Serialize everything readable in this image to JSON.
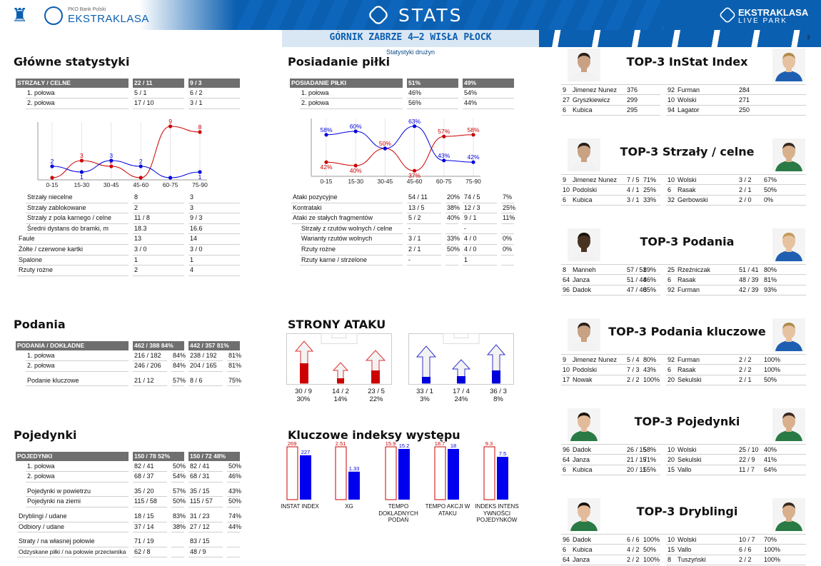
{
  "header": {
    "bank": "PKO Bank Polski",
    "league": "EKSTRAKLASA",
    "stats": "STATS",
    "livepark_top": "EKSTRAKLASA",
    "livepark_bottom": "LIVE PARK",
    "match": "GÓRNIK ZABRZE 4–2 WISŁA PŁOCK",
    "page": "3",
    "subtitle": "Statystyki drużyn",
    "colors": {
      "home": "#cc0000",
      "away": "#0000dd",
      "brand": "#0b5fb0"
    }
  },
  "main_stats": {
    "title": "Główne statystyki",
    "header": [
      "STRZAŁY / CELNE",
      "22 / 11",
      "9 / 3"
    ],
    "halves": [
      {
        "label": "1. połowa",
        "home": "5 / 1",
        "away": "6 / 2"
      },
      {
        "label": "2. połowa",
        "home": "17 / 10",
        "away": "3 / 1"
      }
    ],
    "rows": [
      {
        "label": "Strzały niecelne",
        "home": "8",
        "away": "3",
        "indent": 1
      },
      {
        "label": "Strzały zablokowane",
        "home": "2",
        "away": "3",
        "indent": 1
      },
      {
        "label": "Strzały z pola karnego / celne",
        "home": "11 / 8",
        "away": "9 / 3",
        "indent": 1
      },
      {
        "label": "Średni dystans do bramki, m",
        "home": "18.3",
        "away": "16.6",
        "indent": 1
      },
      {
        "label": "Faule",
        "home": "13",
        "away": "14",
        "indent": 0
      },
      {
        "label": "Żółte / czerwone kartki",
        "home": "3 / 0",
        "away": "3 / 0",
        "indent": 0
      },
      {
        "label": "Spalone",
        "home": "1",
        "away": "1",
        "indent": 0
      },
      {
        "label": "Rzuty rożne",
        "home": "2",
        "away": "4",
        "indent": 0
      }
    ]
  },
  "possession": {
    "title": "Posiadanie piłki",
    "header": [
      "POSIADANIE PIŁKI",
      "51%",
      "49%"
    ],
    "halves": [
      {
        "label": "1. połowa",
        "home": "46%",
        "away": "54%"
      },
      {
        "label": "2. połowa",
        "home": "56%",
        "away": "44%"
      }
    ],
    "rows": [
      {
        "label": "Ataki pozycyjne",
        "home": "54 / 11",
        "hp": "20%",
        "away": "74 / 5",
        "ap": "7%",
        "indent": 0
      },
      {
        "label": "Kontrataki",
        "home": "13 / 5",
        "hp": "38%",
        "away": "12 / 3",
        "ap": "25%",
        "indent": 0
      },
      {
        "label": "Ataki ze stałych fragmentów",
        "home": "5 / 2",
        "hp": "40%",
        "away": "9 / 1",
        "ap": "11%",
        "indent": 0
      },
      {
        "label": "Strzały z rzutów wolnych / celne",
        "home": "-",
        "hp": "",
        "away": "-",
        "ap": "",
        "indent": 1
      },
      {
        "label": "Warianty rzutów wolnych",
        "home": "3 / 1",
        "hp": "33%",
        "away": "4 / 0",
        "ap": "0%",
        "indent": 1
      },
      {
        "label": "Rzuty rożne",
        "home": "2 / 1",
        "hp": "50%",
        "away": "4 / 0",
        "ap": "0%",
        "indent": 1
      },
      {
        "label": "Rzuty karne / strzelone",
        "home": "-",
        "hp": "",
        "away": "1",
        "ap": "",
        "indent": 1
      }
    ]
  },
  "passes": {
    "title": "Podania",
    "header": [
      "PODANIA / DOKŁADNE",
      "462 / 388 84%",
      "442 / 357 81%"
    ],
    "rows": [
      {
        "label": "1. połowa",
        "home": "216 / 182",
        "hp": "84%",
        "away": "238 / 192",
        "ap": "81%"
      },
      {
        "label": "2. połowa",
        "home": "246 / 206",
        "hp": "84%",
        "away": "204 / 165",
        "ap": "81%"
      },
      {
        "label": "Podanie kluczowe",
        "home": "21 / 12",
        "hp": "57%",
        "away": "8 / 6",
        "ap": "75%"
      }
    ]
  },
  "duels": {
    "title": "Pojedynki",
    "header": [
      "POJEDYNKI",
      "150 / 78 52%",
      "150 / 72 48%"
    ],
    "rows": [
      {
        "label": "1. połowa",
        "home": "82 / 41",
        "hp": "50%",
        "away": "82 / 41",
        "ap": "50%",
        "gap": false
      },
      {
        "label": "2. połowa",
        "home": "68 / 37",
        "hp": "54%",
        "away": "68 / 31",
        "ap": "46%",
        "gap": false
      },
      {
        "label": "Pojedynki w powietrzu",
        "home": "35 / 20",
        "hp": "57%",
        "away": "35 / 15",
        "ap": "43%",
        "gap": true
      },
      {
        "label": "Pojedynki na ziemi",
        "home": "115 / 58",
        "hp": "50%",
        "away": "115 / 57",
        "ap": "50%",
        "gap": false
      },
      {
        "label": "Dryblingi / udane",
        "home": "18 / 15",
        "hp": "83%",
        "away": "31 / 23",
        "ap": "74%",
        "gap": true,
        "outdent": true
      },
      {
        "label": "Odbiory / udane",
        "home": "37 / 14",
        "hp": "38%",
        "away": "27 / 12",
        "ap": "44%",
        "gap": false,
        "outdent": true
      },
      {
        "label": "Straty / na własnej połowie",
        "home": "71 / 19",
        "hp": "",
        "away": "83 / 15",
        "ap": "",
        "gap": true,
        "outdent": true
      },
      {
        "label": "Odzyskane piłki / na połowie przeciwnika",
        "home": "62 / 8",
        "hp": "",
        "away": "48 / 9",
        "ap": "",
        "gap": false,
        "outdent": true,
        "small": true
      }
    ]
  },
  "attack": {
    "title": "STRONY ATAKU",
    "home": [
      {
        "value": "30 / 9",
        "pct": "30%"
      },
      {
        "value": "14 / 2",
        "pct": "14%"
      },
      {
        "value": "23 / 5",
        "pct": "22%"
      }
    ],
    "away": [
      {
        "value": "33 / 1",
        "pct": "3%"
      },
      {
        "value": "17 / 4",
        "pct": "24%"
      },
      {
        "value": "36 / 3",
        "pct": "8%"
      }
    ]
  },
  "kpi": {
    "title": "Kluczowe indeksy występu",
    "items": [
      {
        "label": "INSTAT INDEX",
        "home": "269",
        "away": "227",
        "home_level": 1.0,
        "away_level": 0.84
      },
      {
        "label": "XG",
        "home": "2.51",
        "away": "1.33",
        "home_level": 1.0,
        "away_level": 0.53
      },
      {
        "label": "TEMPO DOKLADNYCH PODAŃ",
        "home": "15.9",
        "away": "15.2",
        "home_level": 1.0,
        "away_level": 0.96
      },
      {
        "label": "TEMPO AKCJI W ATAKU",
        "home": "18.7",
        "away": "18",
        "home_level": 1.0,
        "away_level": 0.96
      },
      {
        "label": "INDEKS INTENS YWNOŚCI POJEDYNKÓW",
        "home": "9.3",
        "away": "7.5",
        "home_level": 1.0,
        "away_level": 0.81
      }
    ]
  },
  "chart_data": [
    {
      "type": "line",
      "categories": [
        "0-15",
        "15-30",
        "30-45",
        "45-60",
        "60-75",
        "75-90"
      ],
      "series": [
        {
          "values": [
            0,
            3,
            2,
            0,
            9,
            8
          ],
          "color": "#cc0000"
        },
        {
          "values": [
            2,
            1,
            3,
            2,
            0,
            1
          ],
          "color": "#0000dd"
        }
      ],
      "home_labels": [
        "",
        "3",
        "2",
        "",
        "9",
        "8"
      ],
      "away_labels": [
        "2",
        "1",
        "3",
        "2",
        "",
        "1"
      ],
      "ylim": [
        0,
        9
      ]
    },
    {
      "type": "line",
      "categories": [
        "0-15",
        "15-30",
        "30-45",
        "45-60",
        "60-75",
        "75-90"
      ],
      "series": [
        {
          "values": [
            42,
            40,
            50,
            37,
            57,
            58
          ],
          "color": "#cc0000"
        },
        {
          "values": [
            58,
            60,
            50,
            63,
            43,
            42
          ],
          "color": "#0000dd"
        }
      ],
      "home_labels": [
        "42%",
        "40%",
        "50%",
        "37%",
        "57%",
        "58%"
      ],
      "away_labels": [
        "58%",
        "60%",
        "",
        "63%",
        "43%",
        "42%"
      ],
      "ylim": [
        35,
        65
      ]
    },
    {
      "type": "bar",
      "categories": [
        "INSTAT INDEX",
        "XG",
        "TEMPO DOKLADNYCH PODAŃ",
        "TEMPO AKCJI W ATAKU",
        "INDEKS INTENS YWNOŚCI POJEDYNKÓW"
      ],
      "series": [
        {
          "values": [
            269,
            2.51,
            15.9,
            18.7,
            9.3
          ],
          "color": "#cc0000"
        },
        {
          "values": [
            227,
            1.33,
            15.2,
            18,
            7.5
          ],
          "color": "#0000dd"
        }
      ]
    }
  ],
  "top3": [
    {
      "title": "TOP-3 InStat Index",
      "left": [
        {
          "num": "9",
          "name": "Jimenez Nunez",
          "stat": "376",
          "pct": ""
        },
        {
          "num": "27",
          "name": "Gryszkiewicz",
          "stat": "299",
          "pct": ""
        },
        {
          "num": "6",
          "name": "Kubica",
          "stat": "295",
          "pct": ""
        }
      ],
      "right": [
        {
          "num": "92",
          "name": "Furman",
          "stat": "284",
          "pct": ""
        },
        {
          "num": "10",
          "name": "Wolski",
          "stat": "271",
          "pct": ""
        },
        {
          "num": "94",
          "name": "Lagator",
          "stat": "250",
          "pct": ""
        }
      ],
      "left_skin": "#c9a183",
      "right_skin": "#e6c2a0",
      "left_kit": "#f2f2f2",
      "right_kit": "#1f5fb2",
      "left_hair": "#2a1f18",
      "right_hair": "#b08a4c"
    },
    {
      "title": "TOP-3 Strzały / celne",
      "left": [
        {
          "num": "9",
          "name": "Jimenez Nunez",
          "stat": "7 / 5",
          "pct": "71%"
        },
        {
          "num": "10",
          "name": "Podolski",
          "stat": "4 / 1",
          "pct": "25%"
        },
        {
          "num": "6",
          "name": "Kubica",
          "stat": "3 / 1",
          "pct": "33%"
        }
      ],
      "right": [
        {
          "num": "10",
          "name": "Wolski",
          "stat": "3 / 2",
          "pct": "67%"
        },
        {
          "num": "6",
          "name": "Rasak",
          "stat": "2 / 1",
          "pct": "50%"
        },
        {
          "num": "32",
          "name": "Gerbowski",
          "stat": "2 / 0",
          "pct": "0%"
        }
      ],
      "left_skin": "#c9a183",
      "right_skin": "#d9b08c",
      "left_kit": "#f2f2f2",
      "right_kit": "#2a7a45",
      "left_hair": "#2a1f18",
      "right_hair": "#3a2a20"
    },
    {
      "title": "TOP-3 Podania",
      "left": [
        {
          "num": "8",
          "name": "Manneh",
          "stat": "57 / 51",
          "pct": "89%"
        },
        {
          "num": "64",
          "name": "Janza",
          "stat": "51 / 44",
          "pct": "86%"
        },
        {
          "num": "96",
          "name": "Dadok",
          "stat": "47 / 40",
          "pct": "85%"
        }
      ],
      "right": [
        {
          "num": "25",
          "name": "Rzeźniczak",
          "stat": "51 / 41",
          "pct": "80%"
        },
        {
          "num": "6",
          "name": "Rasak",
          "stat": "48 / 39",
          "pct": "81%"
        },
        {
          "num": "92",
          "name": "Furman",
          "stat": "42 / 39",
          "pct": "93%"
        }
      ],
      "left_skin": "#4a3222",
      "right_skin": "#e6c2a0",
      "left_kit": "#f2f2f2",
      "right_kit": "#1f5fb2",
      "left_hair": "#1a120c",
      "right_hair": "#c49a5a"
    },
    {
      "title": "TOP-3 Podania kluczowe",
      "left": [
        {
          "num": "9",
          "name": "Jimenez Nunez",
          "stat": "5 / 4",
          "pct": "80%"
        },
        {
          "num": "10",
          "name": "Podolski",
          "stat": "7 / 3",
          "pct": "43%"
        },
        {
          "num": "17",
          "name": "Nowak",
          "stat": "2 / 2",
          "pct": "100%"
        }
      ],
      "right": [
        {
          "num": "92",
          "name": "Furman",
          "stat": "2 / 2",
          "pct": "100%"
        },
        {
          "num": "6",
          "name": "Rasak",
          "stat": "2 / 2",
          "pct": "100%"
        },
        {
          "num": "20",
          "name": "Sekulski",
          "stat": "2 / 1",
          "pct": "50%"
        }
      ],
      "left_skin": "#c9a183",
      "right_skin": "#e6c2a0",
      "left_kit": "#f2f2f2",
      "right_kit": "#1f5fb2",
      "left_hair": "#2a1f18",
      "right_hair": "#b08a4c"
    },
    {
      "title": "TOP-3 Pojedynki",
      "left": [
        {
          "num": "96",
          "name": "Dadok",
          "stat": "26 / 15",
          "pct": "58%"
        },
        {
          "num": "64",
          "name": "Janza",
          "stat": "21 / 15",
          "pct": "71%"
        },
        {
          "num": "6",
          "name": "Kubica",
          "stat": "20 / 11",
          "pct": "55%"
        }
      ],
      "right": [
        {
          "num": "10",
          "name": "Wolski",
          "stat": "25 / 10",
          "pct": "40%"
        },
        {
          "num": "20",
          "name": "Sekulski",
          "stat": "22 / 9",
          "pct": "41%"
        },
        {
          "num": "15",
          "name": "Vallo",
          "stat": "11 / 7",
          "pct": "64%"
        }
      ],
      "left_skin": "#e4bb9a",
      "right_skin": "#d9b08c",
      "left_kit": "#2a7a45",
      "right_kit": "#2a7a45",
      "left_hair": "#1a120c",
      "right_hair": "#3a2a20"
    },
    {
      "title": "TOP-3 Dryblingi",
      "left": [
        {
          "num": "96",
          "name": "Dadok",
          "stat": "6 / 6",
          "pct": "100%"
        },
        {
          "num": "6",
          "name": "Kubica",
          "stat": "4 / 2",
          "pct": "50%"
        },
        {
          "num": "64",
          "name": "Janza",
          "stat": "2 / 2",
          "pct": "100%"
        }
      ],
      "right": [
        {
          "num": "10",
          "name": "Wolski",
          "stat": "10 / 7",
          "pct": "70%"
        },
        {
          "num": "15",
          "name": "Vallo",
          "stat": "6 / 6",
          "pct": "100%"
        },
        {
          "num": "8",
          "name": "Tuszyński",
          "stat": "2 / 2",
          "pct": "100%"
        }
      ],
      "left_skin": "#e4bb9a",
      "right_skin": "#d9b08c",
      "left_kit": "#2a7a45",
      "right_kit": "#2a7a45",
      "left_hair": "#1a120c",
      "right_hair": "#3a2a20"
    }
  ]
}
